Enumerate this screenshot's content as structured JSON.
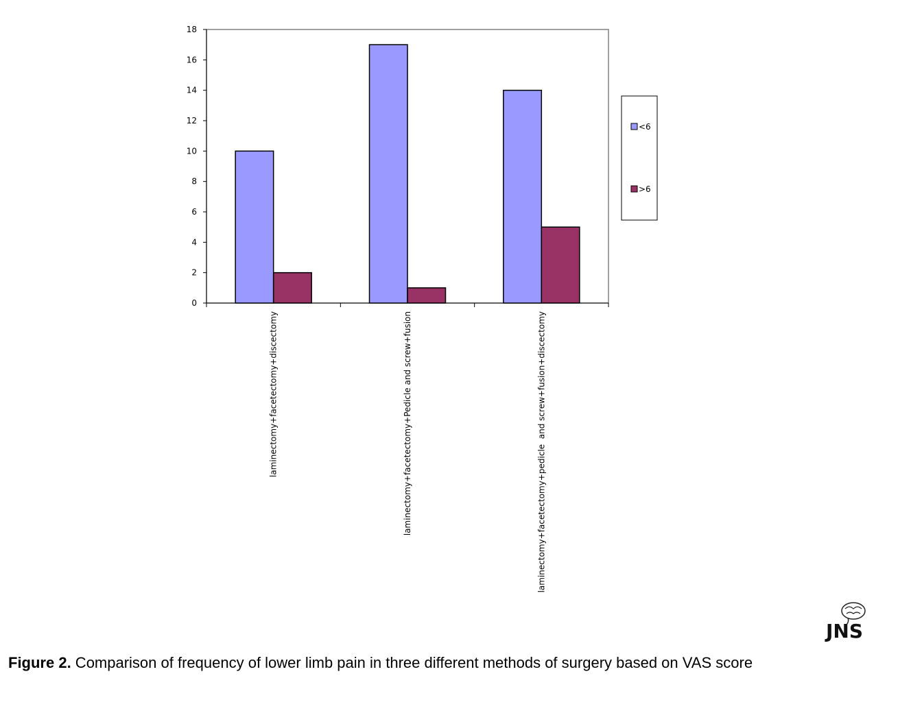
{
  "chart_data": {
    "type": "bar",
    "title": "",
    "xlabel": "",
    "ylabel": "",
    "ylim": [
      0,
      18
    ],
    "yticks": [
      0,
      2,
      4,
      6,
      8,
      10,
      12,
      14,
      16,
      18
    ],
    "categories": [
      "laminectomy+facetectomy+discectomy",
      "laminectomy+facetectomy+Pedicle and screw+fusion",
      "laminectomy+facetectomy+pedicle  and screw+fusion+discectomy"
    ],
    "series": [
      {
        "name": "<6",
        "values": [
          10,
          17,
          14
        ],
        "color": "#9999ff"
      },
      {
        "name": ">6",
        "values": [
          2,
          1,
          5
        ],
        "color": "#993366"
      }
    ],
    "legend_position": "right",
    "grid": false
  },
  "caption": {
    "label": "Figure 2.",
    "text": " Comparison of frequency of lower limb pain in three different methods of surgery based on VAS score"
  },
  "logo": {
    "text": "JNS",
    "icon": "brain-icon"
  }
}
